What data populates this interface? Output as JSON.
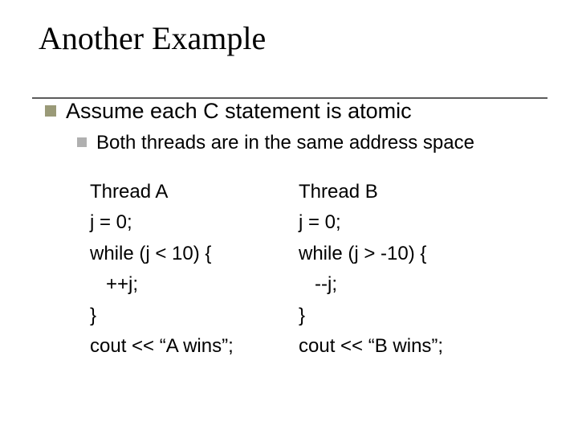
{
  "colors": {
    "bullet_level1": "#9a9a78",
    "bullet_level2": "#b0b0b0",
    "underline": "#5b5b5b",
    "text": "#000000",
    "background": "#ffffff"
  },
  "typography": {
    "title_font": "Times New Roman",
    "body_font": "Arial",
    "title_size_pt": 32,
    "l1_size_pt": 21,
    "l2_size_pt": 19,
    "code_size_pt": 19
  },
  "title": "Another Example",
  "bullets": {
    "l1": "Assume each C statement is atomic",
    "l2": "Both threads are in the same address space"
  },
  "threadA": {
    "name": "Thread A",
    "line1": "j = 0;",
    "line2": "while (j < 10) {",
    "line3": "   ++j;",
    "line4": "}",
    "line5": "cout << “A wins”;"
  },
  "threadB": {
    "name": "Thread B",
    "line1": "j = 0;",
    "line2": "while (j > -10) {",
    "line3": "   --j;",
    "line4": "}",
    "line5": "cout << “B wins”;"
  }
}
